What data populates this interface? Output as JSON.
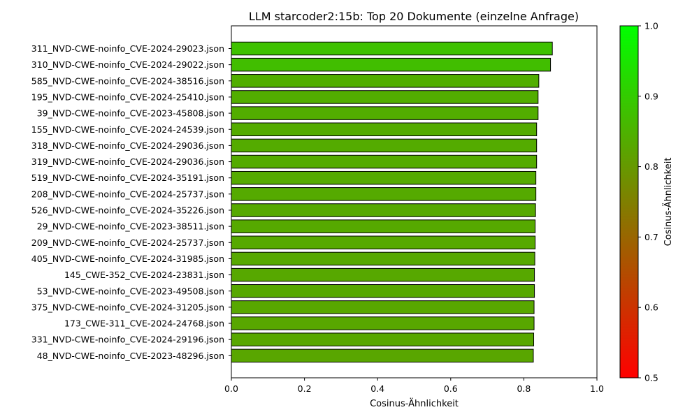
{
  "chart_data": {
    "type": "bar",
    "orientation": "horizontal",
    "title": "LLM starcoder2:15b: Top 20 Dokumente (einzelne Anfrage)",
    "xlabel": "Cosinus-Ähnlichkeit",
    "ylabel": "",
    "xlim": [
      0,
      1.0
    ],
    "x_ticks": [
      "0.0",
      "0.2",
      "0.4",
      "0.6",
      "0.8",
      "1.0"
    ],
    "categories": [
      "311_NVD-CWE-noinfo_CVE-2024-29023.json",
      "310_NVD-CWE-noinfo_CVE-2024-29022.json",
      "585_NVD-CWE-noinfo_CVE-2024-38516.json",
      "195_NVD-CWE-noinfo_CVE-2024-25410.json",
      "39_NVD-CWE-noinfo_CVE-2023-45808.json",
      "155_NVD-CWE-noinfo_CVE-2024-24539.json",
      "318_NVD-CWE-noinfo_CVE-2024-29036.json",
      "319_NVD-CWE-noinfo_CVE-2024-29036.json",
      "519_NVD-CWE-noinfo_CVE-2024-35191.json",
      "208_NVD-CWE-noinfo_CVE-2024-25737.json",
      "526_NVD-CWE-noinfo_CVE-2024-35226.json",
      "29_NVD-CWE-noinfo_CVE-2023-38511.json",
      "209_NVD-CWE-noinfo_CVE-2024-25737.json",
      "405_NVD-CWE-noinfo_CVE-2024-31985.json",
      "145_CWE-352_CVE-2024-23831.json",
      "53_NVD-CWE-noinfo_CVE-2023-49508.json",
      "375_NVD-CWE-noinfo_CVE-2024-31205.json",
      "173_CWE-311_CVE-2024-24768.json",
      "331_NVD-CWE-noinfo_CVE-2024-29196.json",
      "48_NVD-CWE-noinfo_CVE-2023-48296.json"
    ],
    "values": [
      0.878,
      0.873,
      0.841,
      0.839,
      0.839,
      0.835,
      0.835,
      0.835,
      0.833,
      0.833,
      0.832,
      0.831,
      0.831,
      0.83,
      0.829,
      0.829,
      0.828,
      0.828,
      0.827,
      0.826
    ],
    "colorbar": {
      "label": "Cosinus-Ähnlichkeit",
      "range": [
        0.5,
        1.0
      ],
      "ticks": [
        "0.5",
        "0.6",
        "0.7",
        "0.8",
        "0.9",
        "1.0"
      ],
      "color_low": "#ff0000",
      "color_high": "#00ff00"
    },
    "bar_edge_color": "#000000",
    "grid": false
  }
}
